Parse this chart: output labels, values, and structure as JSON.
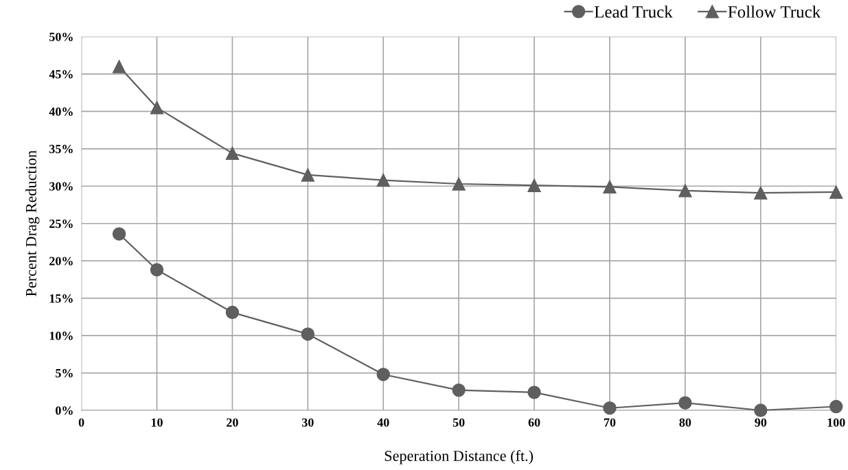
{
  "chart_data": {
    "type": "line",
    "xlabel": "Seperation Distance (ft.)",
    "ylabel": "Percent Drag Reduction",
    "x": [
      5,
      10,
      20,
      30,
      40,
      50,
      60,
      70,
      80,
      90,
      100
    ],
    "series": [
      {
        "name": "Lead Truck",
        "color": "#5f5f5f",
        "marker": "circle",
        "values": [
          23.6,
          18.8,
          13.1,
          10.2,
          4.8,
          2.7,
          2.4,
          0.3,
          1.0,
          0.0,
          0.5
        ]
      },
      {
        "name": "Follow Truck",
        "color": "#5f5f5f",
        "marker": "triangle",
        "values": [
          46.0,
          40.5,
          34.4,
          31.5,
          30.8,
          30.3,
          30.1,
          29.9,
          29.4,
          29.1,
          29.2
        ]
      }
    ],
    "xlim": [
      0,
      100
    ],
    "xticks": [
      0,
      10,
      20,
      30,
      40,
      50,
      60,
      70,
      80,
      90,
      100
    ],
    "ylim": [
      0,
      50
    ],
    "yticks": [
      {
        "value": 0,
        "label": "0%"
      },
      {
        "value": 5,
        "label": "5%"
      },
      {
        "value": 10,
        "label": "10%"
      },
      {
        "value": 15,
        "label": "15%"
      },
      {
        "value": 20,
        "label": "20%"
      },
      {
        "value": 25,
        "label": "25%"
      },
      {
        "value": 30,
        "label": "30%"
      },
      {
        "value": 35,
        "label": "35%"
      },
      {
        "value": 40,
        "label": "40%"
      },
      {
        "value": 45,
        "label": "45%"
      },
      {
        "value": 50,
        "label": "50%"
      }
    ],
    "grid": true,
    "legend": "top right",
    "line_style": "solid"
  }
}
